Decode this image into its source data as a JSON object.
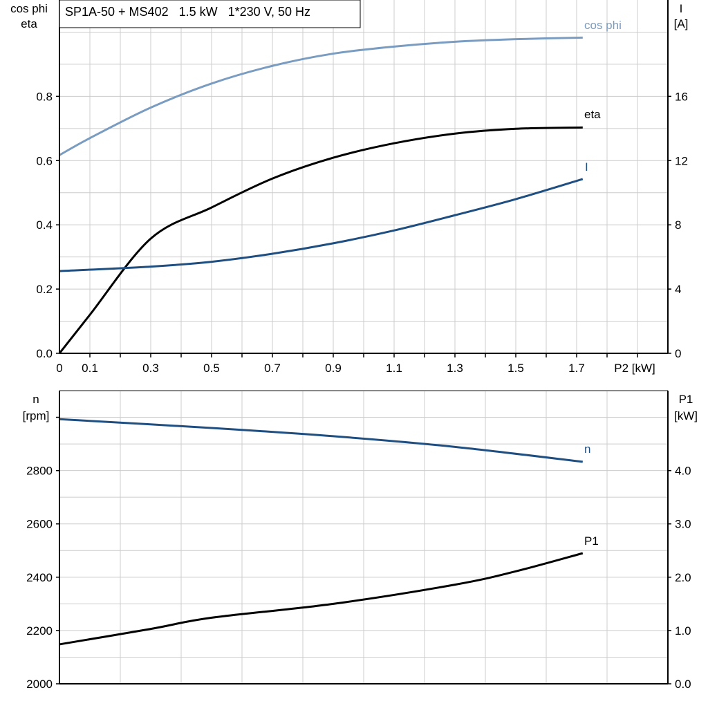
{
  "chart_data": [
    {
      "type": "line",
      "title": "SP1A-50 + MS402   1.5 kW   1*230 V, 50 Hz",
      "xlabel": "P2 [kW]",
      "ylabel_left": [
        "cos phi",
        "eta"
      ],
      "ylabel_right": [
        "I",
        "[A]"
      ],
      "xlim": [
        0,
        2.0
      ],
      "ylim_left": [
        0,
        1.1
      ],
      "ylim_right": [
        0,
        22
      ],
      "x_ticks": [
        "0",
        "0.1",
        "0.3",
        "0.5",
        "0.7",
        "0.9",
        "1.1",
        "1.3",
        "1.5",
        "1.7"
      ],
      "y_ticks_left": [
        "0.0",
        "0.2",
        "0.4",
        "0.6",
        "0.8"
      ],
      "y_ticks_right": [
        "0",
        "4",
        "8",
        "12",
        "16"
      ],
      "grid": true,
      "series": [
        {
          "name": "cos phi",
          "axis": "left",
          "color": "#7a9cc0",
          "x": [
            0,
            0.1,
            0.3,
            0.5,
            0.7,
            0.9,
            1.1,
            1.3,
            1.5,
            1.72
          ],
          "y": [
            0.617,
            0.67,
            0.765,
            0.84,
            0.895,
            0.933,
            0.955,
            0.97,
            0.978,
            0.983
          ]
        },
        {
          "name": "eta",
          "axis": "left",
          "color": "#000000",
          "x": [
            0,
            0.1,
            0.3,
            0.5,
            0.7,
            0.9,
            1.1,
            1.3,
            1.5,
            1.72
          ],
          "y": [
            0,
            0.12,
            0.357,
            0.454,
            0.544,
            0.609,
            0.654,
            0.684,
            0.699,
            0.703
          ]
        },
        {
          "name": "I",
          "axis": "right",
          "color": "#1f4e80",
          "x": [
            0,
            0.3,
            0.5,
            0.7,
            0.9,
            1.1,
            1.3,
            1.5,
            1.72
          ],
          "y": [
            5.12,
            5.4,
            5.7,
            6.2,
            6.85,
            7.65,
            8.6,
            9.6,
            10.85
          ]
        }
      ]
    },
    {
      "type": "line",
      "xlim": [
        0,
        2.0
      ],
      "ylabel_left": [
        "n",
        "[rpm]"
      ],
      "ylabel_right": [
        "P1",
        "[kW]"
      ],
      "ylim_left": [
        2000,
        3100
      ],
      "ylim_right": [
        0,
        5.5
      ],
      "y_ticks_left": [
        "2000",
        "2200",
        "2400",
        "2600",
        "2800"
      ],
      "y_ticks_right": [
        "0.0",
        "1.0",
        "2.0",
        "3.0",
        "4.0"
      ],
      "grid": true,
      "series": [
        {
          "name": "n",
          "axis": "left",
          "color": "#1f4e80",
          "x": [
            0,
            0.5,
            0.9,
            1.3,
            1.72
          ],
          "y": [
            2993,
            2960,
            2929,
            2889,
            2833
          ]
        },
        {
          "name": "P1",
          "axis": "right",
          "color": "#000000",
          "x": [
            0,
            0.3,
            0.5,
            0.9,
            1.3,
            1.5,
            1.72
          ],
          "y": [
            0.74,
            1.03,
            1.24,
            1.5,
            1.86,
            2.11,
            2.45
          ]
        }
      ]
    }
  ]
}
